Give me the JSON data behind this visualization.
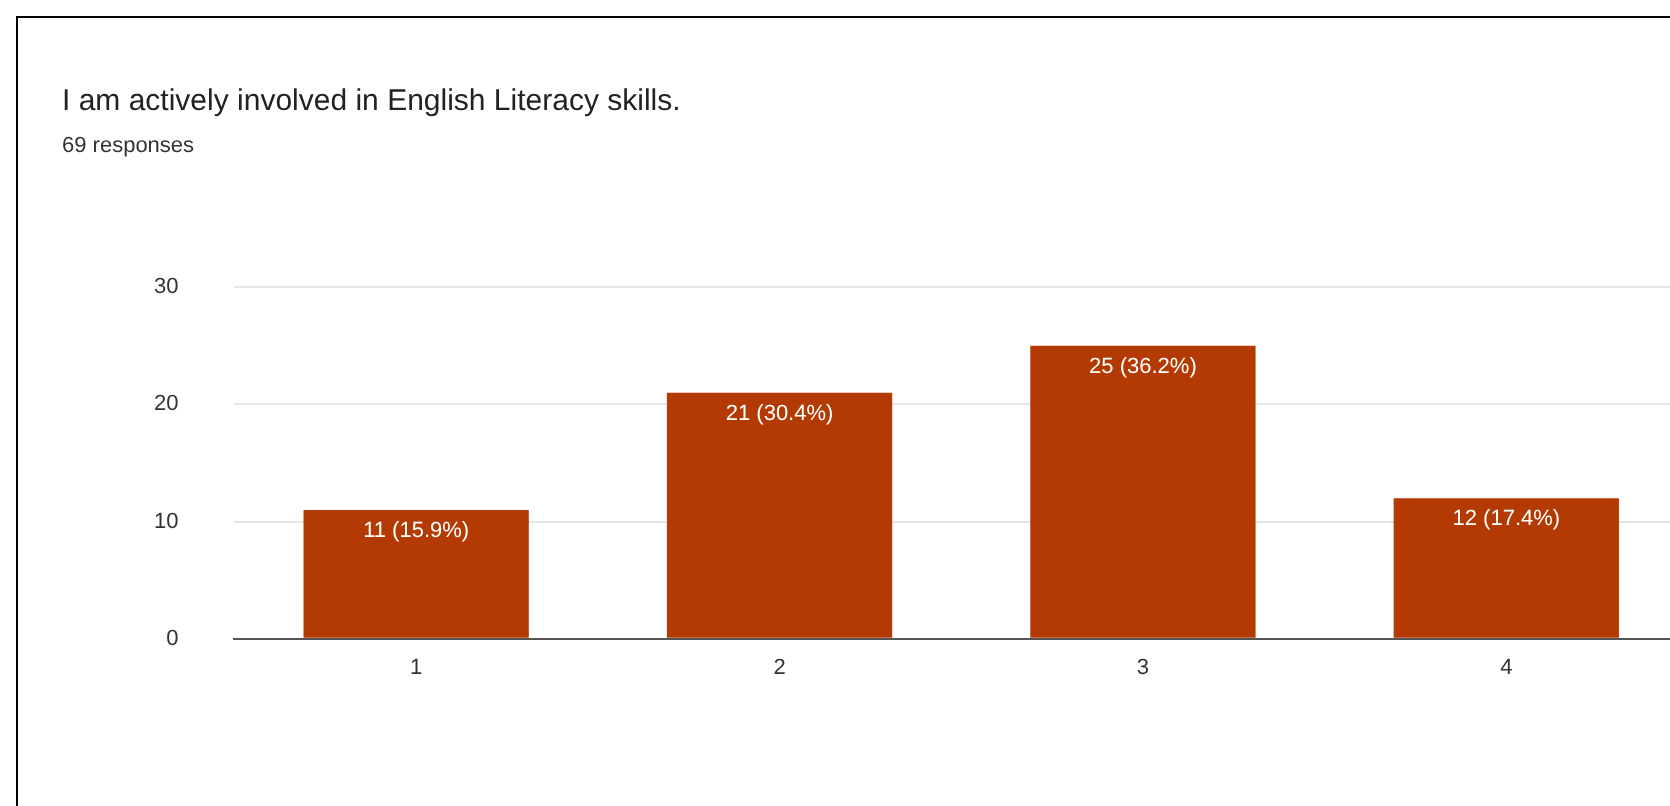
{
  "chart_data": {
    "type": "bar",
    "title": "I am actively involved in English Literacy skills.",
    "subtitle": "69 responses",
    "categories": [
      "1",
      "2",
      "3",
      "4"
    ],
    "values": [
      11,
      21,
      25,
      12
    ],
    "value_labels": [
      "11 (15.9%)",
      "21 (30.4%)",
      "25 (36.2%)",
      "12 (17.4%)"
    ],
    "color": "#b33a03",
    "ylim": [
      0,
      30
    ],
    "yticks": [
      0,
      10,
      20,
      30
    ],
    "grid": "y",
    "legend": false
  }
}
